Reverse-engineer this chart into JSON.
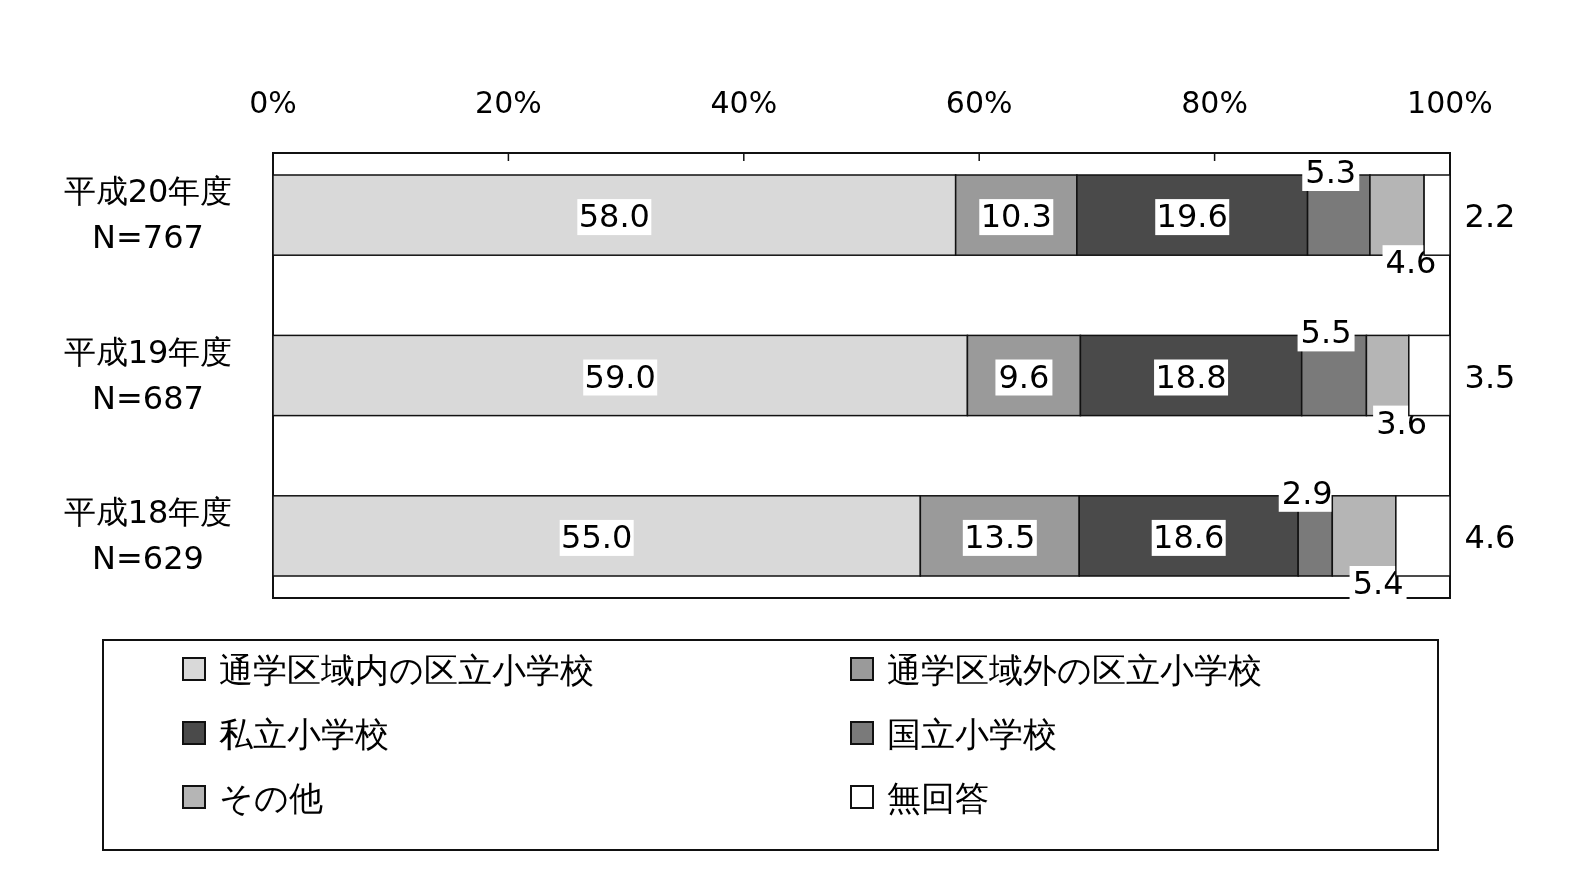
{
  "chart_data": {
    "type": "bar",
    "orientation": "horizontal",
    "stacked": true,
    "legend": "bottom",
    "categories": [
      "平成20年度\nN=767",
      "平成19年度\nN=687",
      "平成18年度\nN=629"
    ],
    "xlim": [
      0,
      100
    ],
    "xticks": [
      {
        "value": 0,
        "label": "0%"
      },
      {
        "value": 20,
        "label": "20%"
      },
      {
        "value": 40,
        "label": "40%"
      },
      {
        "value": 60,
        "label": "60%"
      },
      {
        "value": 80,
        "label": "80%"
      },
      {
        "value": 100,
        "label": "100%"
      }
    ],
    "series": [
      {
        "name": "通学区域内の区立小学校",
        "color": "#d9d9d9",
        "values": [
          58.0,
          59.0,
          55.0
        ],
        "value_labels": [
          "58.0",
          "59.0",
          "55.0"
        ]
      },
      {
        "name": "通学区域外の区立小学校",
        "color": "#9a9a9a",
        "values": [
          10.3,
          9.6,
          13.5
        ],
        "value_labels": [
          "10.3",
          "9.6",
          "13.5"
        ]
      },
      {
        "name": "私立小学校",
        "color": "#4a4a4a",
        "values": [
          19.6,
          18.8,
          18.6
        ],
        "value_labels": [
          "19.6",
          "18.8",
          "18.6"
        ]
      },
      {
        "name": "国立小学校",
        "color": "#7a7a7a",
        "values": [
          5.3,
          5.5,
          2.9
        ],
        "value_labels": [
          "5.3",
          "5.5",
          "2.9"
        ]
      },
      {
        "name": "その他",
        "color": "#b5b5b5",
        "values": [
          4.6,
          3.6,
          5.4
        ],
        "value_labels": [
          "4.6",
          "3.6",
          "5.4"
        ]
      },
      {
        "name": "無回答",
        "color": "#ffffff",
        "values": [
          2.2,
          3.5,
          4.6
        ],
        "value_labels": [
          "2.2",
          "3.5",
          "4.6"
        ]
      }
    ]
  }
}
